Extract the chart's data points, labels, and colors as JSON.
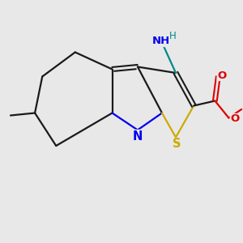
{
  "bg_color": "#e8e8e8",
  "colors": {
    "bond": "#1a1a1a",
    "N": "#0000ee",
    "S": "#ccaa00",
    "O": "#dd0000",
    "NH2": "#008888"
  },
  "figsize": [
    3.0,
    3.0
  ],
  "dpi": 100
}
